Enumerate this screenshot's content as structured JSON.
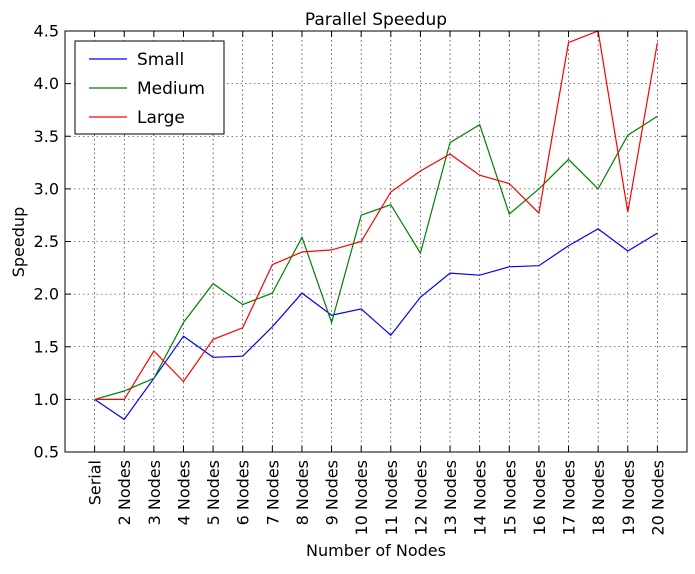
{
  "chart_data": {
    "type": "line",
    "title": "Parallel Speedup",
    "xlabel": "Number of Nodes",
    "ylabel": "Speedup",
    "ylim": [
      0.5,
      4.5
    ],
    "yticks": [
      "0.5",
      "1.0",
      "1.5",
      "2.0",
      "2.5",
      "3.0",
      "3.5",
      "4.0",
      "4.5"
    ],
    "grid": true,
    "legend_position": "top-left",
    "categories": [
      "Serial",
      "2 Nodes",
      "3 Nodes",
      "4 Nodes",
      "5 Nodes",
      "6 Nodes",
      "7 Nodes",
      "8 Nodes",
      "9 Nodes",
      "10 Nodes",
      "11 Nodes",
      "12 Nodes",
      "13 Nodes",
      "14 Nodes",
      "15 Nodes",
      "16 Nodes",
      "17 Nodes",
      "18 Nodes",
      "19 Nodes",
      "20 Nodes"
    ],
    "series": [
      {
        "name": "Small",
        "color": "#0000ff",
        "values": [
          1.0,
          0.81,
          1.2,
          1.6,
          1.4,
          1.41,
          1.69,
          2.01,
          1.8,
          1.86,
          1.61,
          1.97,
          2.2,
          2.18,
          2.26,
          2.27,
          2.46,
          2.62,
          2.41,
          2.58
        ]
      },
      {
        "name": "Medium",
        "color": "#008000",
        "values": [
          1.0,
          1.08,
          1.2,
          1.73,
          2.1,
          1.9,
          2.01,
          2.54,
          1.73,
          2.75,
          2.85,
          2.39,
          3.44,
          3.61,
          2.76,
          3.0,
          3.28,
          3.0,
          3.51,
          3.69
        ]
      },
      {
        "name": "Large",
        "color": "#ff0000",
        "values": [
          1.0,
          1.0,
          1.46,
          1.17,
          1.57,
          1.68,
          2.28,
          2.4,
          2.42,
          2.5,
          2.97,
          3.17,
          3.33,
          3.13,
          3.05,
          2.77,
          4.39,
          4.5,
          2.78,
          4.39
        ]
      }
    ]
  }
}
